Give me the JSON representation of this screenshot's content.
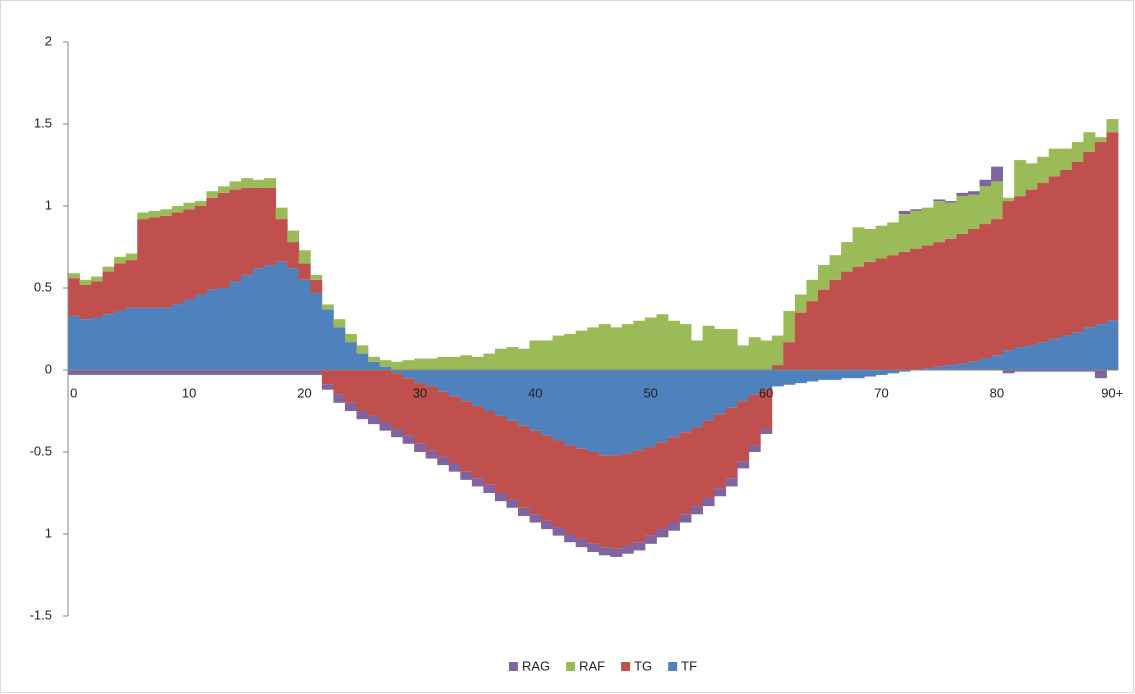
{
  "chart_data": {
    "type": "stacked-bar",
    "categories": [
      "0",
      null,
      null,
      null,
      null,
      null,
      null,
      null,
      null,
      null,
      "10",
      null,
      null,
      null,
      null,
      null,
      null,
      null,
      null,
      null,
      "20",
      null,
      null,
      null,
      null,
      null,
      null,
      null,
      null,
      null,
      "30",
      null,
      null,
      null,
      null,
      null,
      null,
      null,
      null,
      null,
      "40",
      null,
      null,
      null,
      null,
      null,
      null,
      null,
      null,
      null,
      "50",
      null,
      null,
      null,
      null,
      null,
      null,
      null,
      null,
      null,
      "60",
      null,
      null,
      null,
      null,
      null,
      null,
      null,
      null,
      null,
      "70",
      null,
      null,
      null,
      null,
      null,
      null,
      null,
      null,
      null,
      "80",
      null,
      null,
      null,
      null,
      null,
      null,
      null,
      null,
      null,
      "90+"
    ],
    "ylim": [
      -1.5,
      2
    ],
    "yticks": [
      -1.5,
      {
        "value": -1,
        "label": "1"
      },
      -0.5,
      0,
      0.5,
      1,
      1.5,
      2
    ],
    "legend": "bottom",
    "series": [
      {
        "name": "RAG",
        "color": "#8064a2",
        "values": [
          -0.03,
          -0.03,
          -0.03,
          -0.03,
          -0.03,
          -0.03,
          -0.03,
          -0.03,
          -0.03,
          -0.03,
          -0.03,
          -0.03,
          -0.03,
          -0.03,
          -0.03,
          -0.03,
          -0.03,
          -0.03,
          -0.03,
          -0.03,
          -0.03,
          -0.03,
          -0.03,
          -0.05,
          -0.05,
          -0.05,
          -0.05,
          -0.05,
          -0.05,
          -0.05,
          -0.05,
          -0.05,
          -0.05,
          -0.05,
          -0.05,
          -0.05,
          -0.05,
          -0.05,
          -0.05,
          -0.05,
          -0.05,
          -0.05,
          -0.05,
          -0.05,
          -0.05,
          -0.05,
          -0.05,
          -0.05,
          -0.05,
          -0.05,
          -0.05,
          -0.05,
          -0.05,
          -0.05,
          -0.05,
          -0.05,
          -0.05,
          -0.05,
          -0.04,
          -0.04,
          -0.03,
          0,
          0,
          0,
          0,
          0,
          0,
          0,
          0,
          0,
          0,
          0,
          0.02,
          0.01,
          0,
          0.01,
          0.01,
          0.02,
          0.02,
          0.04,
          0.09,
          -0.02,
          -0.01,
          -0.01,
          -0.01,
          -0.01,
          -0.01,
          -0.01,
          -0.01,
          -0.05,
          0
        ]
      },
      {
        "name": "RAF",
        "color": "#9bbb59",
        "values": [
          0.03,
          0.03,
          0.03,
          0.03,
          0.04,
          0.04,
          0.04,
          0.04,
          0.04,
          0.04,
          0.04,
          0.03,
          0.04,
          0.04,
          0.05,
          0.06,
          0.05,
          0.06,
          0.07,
          0.07,
          0.08,
          0.03,
          0.03,
          0.05,
          0.05,
          0.05,
          0.03,
          0.04,
          0.05,
          0.06,
          0.07,
          0.07,
          0.08,
          0.08,
          0.09,
          0.08,
          0.1,
          0.13,
          0.14,
          0.13,
          0.18,
          0.18,
          0.21,
          0.22,
          0.24,
          0.26,
          0.28,
          0.26,
          0.28,
          0.3,
          0.32,
          0.34,
          0.3,
          0.28,
          0.18,
          0.27,
          0.25,
          0.25,
          0.15,
          0.2,
          0.18,
          0.18,
          0.19,
          0.11,
          0.13,
          0.15,
          0.15,
          0.18,
          0.24,
          0.2,
          0.2,
          0.2,
          0.23,
          0.23,
          0.23,
          0.25,
          0.22,
          0.23,
          0.21,
          0.23,
          0.23,
          0.02,
          0.22,
          0.16,
          0.16,
          0.17,
          0.13,
          0.12,
          0.12,
          0.03,
          0.08
        ]
      },
      {
        "name": "TG",
        "color": "#c0504d",
        "values": [
          0.23,
          0.21,
          0.22,
          0.26,
          0.29,
          0.29,
          0.54,
          0.55,
          0.56,
          0.56,
          0.55,
          0.54,
          0.56,
          0.58,
          0.56,
          0.53,
          0.49,
          0.47,
          0.26,
          0.16,
          0.1,
          0.08,
          -0.09,
          -0.15,
          -0.2,
          -0.25,
          -0.28,
          -0.32,
          -0.34,
          -0.35,
          -0.37,
          -0.39,
          -0.4,
          -0.41,
          -0.43,
          -0.44,
          -0.45,
          -0.47,
          -0.48,
          -0.5,
          -0.51,
          -0.52,
          -0.53,
          -0.54,
          -0.55,
          -0.56,
          -0.56,
          -0.57,
          -0.56,
          -0.56,
          -0.54,
          -0.53,
          -0.52,
          -0.5,
          -0.48,
          -0.47,
          -0.45,
          -0.43,
          -0.37,
          -0.31,
          -0.24,
          0.03,
          0.17,
          0.35,
          0.42,
          0.49,
          0.55,
          0.6,
          0.63,
          0.66,
          0.68,
          0.7,
          0.72,
          0.74,
          0.75,
          0.76,
          0.77,
          0.79,
          0.81,
          0.82,
          0.83,
          0.91,
          0.92,
          0.95,
          0.97,
          0.99,
          1.01,
          1.04,
          1.07,
          1.11,
          1.15
        ]
      },
      {
        "name": "TF",
        "color": "#4f81bd",
        "values": [
          0.33,
          0.31,
          0.32,
          0.34,
          0.36,
          0.38,
          0.38,
          0.38,
          0.38,
          0.4,
          0.43,
          0.46,
          0.49,
          0.5,
          0.54,
          0.58,
          0.62,
          0.64,
          0.66,
          0.62,
          0.55,
          0.47,
          0.37,
          0.26,
          0.17,
          0.1,
          0.05,
          0.02,
          -0.02,
          -0.05,
          -0.08,
          -0.1,
          -0.13,
          -0.16,
          -0.19,
          -0.22,
          -0.25,
          -0.28,
          -0.31,
          -0.34,
          -0.37,
          -0.4,
          -0.43,
          -0.46,
          -0.48,
          -0.5,
          -0.52,
          -0.52,
          -0.51,
          -0.49,
          -0.47,
          -0.44,
          -0.41,
          -0.38,
          -0.35,
          -0.31,
          -0.27,
          -0.23,
          -0.19,
          -0.15,
          -0.12,
          -0.1,
          -0.09,
          -0.08,
          -0.07,
          -0.06,
          -0.06,
          -0.05,
          -0.05,
          -0.04,
          -0.03,
          -0.02,
          -0.01,
          0,
          0.01,
          0.02,
          0.03,
          0.04,
          0.05,
          0.07,
          0.09,
          0.12,
          0.14,
          0.15,
          0.17,
          0.19,
          0.21,
          0.23,
          0.26,
          0.28,
          0.3
        ]
      }
    ]
  }
}
